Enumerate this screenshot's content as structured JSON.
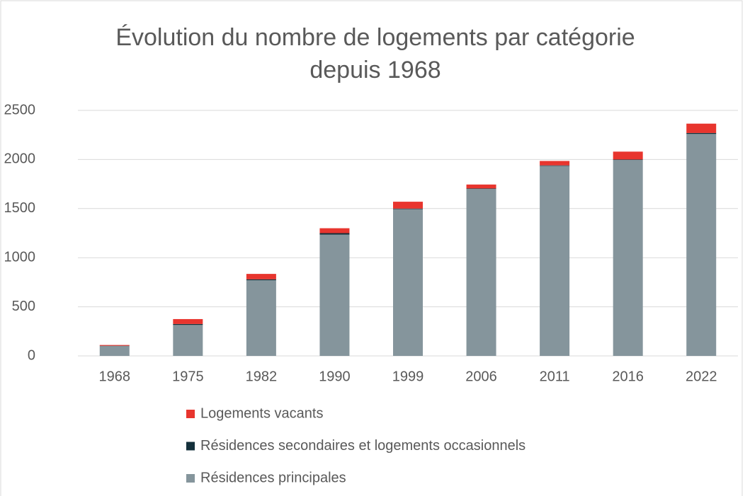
{
  "chart_data": {
    "type": "stacked_bar",
    "title": "Évolution du nombre de logements par catégorie depuis 1968",
    "categories": [
      "1968",
      "1975",
      "1982",
      "1990",
      "1999",
      "2006",
      "2011",
      "2016",
      "2022"
    ],
    "series": [
      {
        "name": "Résidences principales",
        "color": "#85959c",
        "values": [
          100,
          315,
          770,
          1235,
          1495,
          1700,
          1935,
          1995,
          2260
        ]
      },
      {
        "name": "Résidences secondaires et logements occasionnels",
        "color": "#14303b",
        "values": [
          3,
          10,
          10,
          15,
          5,
          5,
          5,
          5,
          10
        ]
      },
      {
        "name": "Logements vacants",
        "color": "#e8352e",
        "values": [
          8,
          50,
          55,
          50,
          70,
          40,
          45,
          80,
          95
        ]
      }
    ],
    "ylim": [
      0,
      2500
    ],
    "yticks": [
      0,
      500,
      1000,
      1500,
      2000,
      2500
    ],
    "grid": true,
    "legend": "bottom"
  }
}
